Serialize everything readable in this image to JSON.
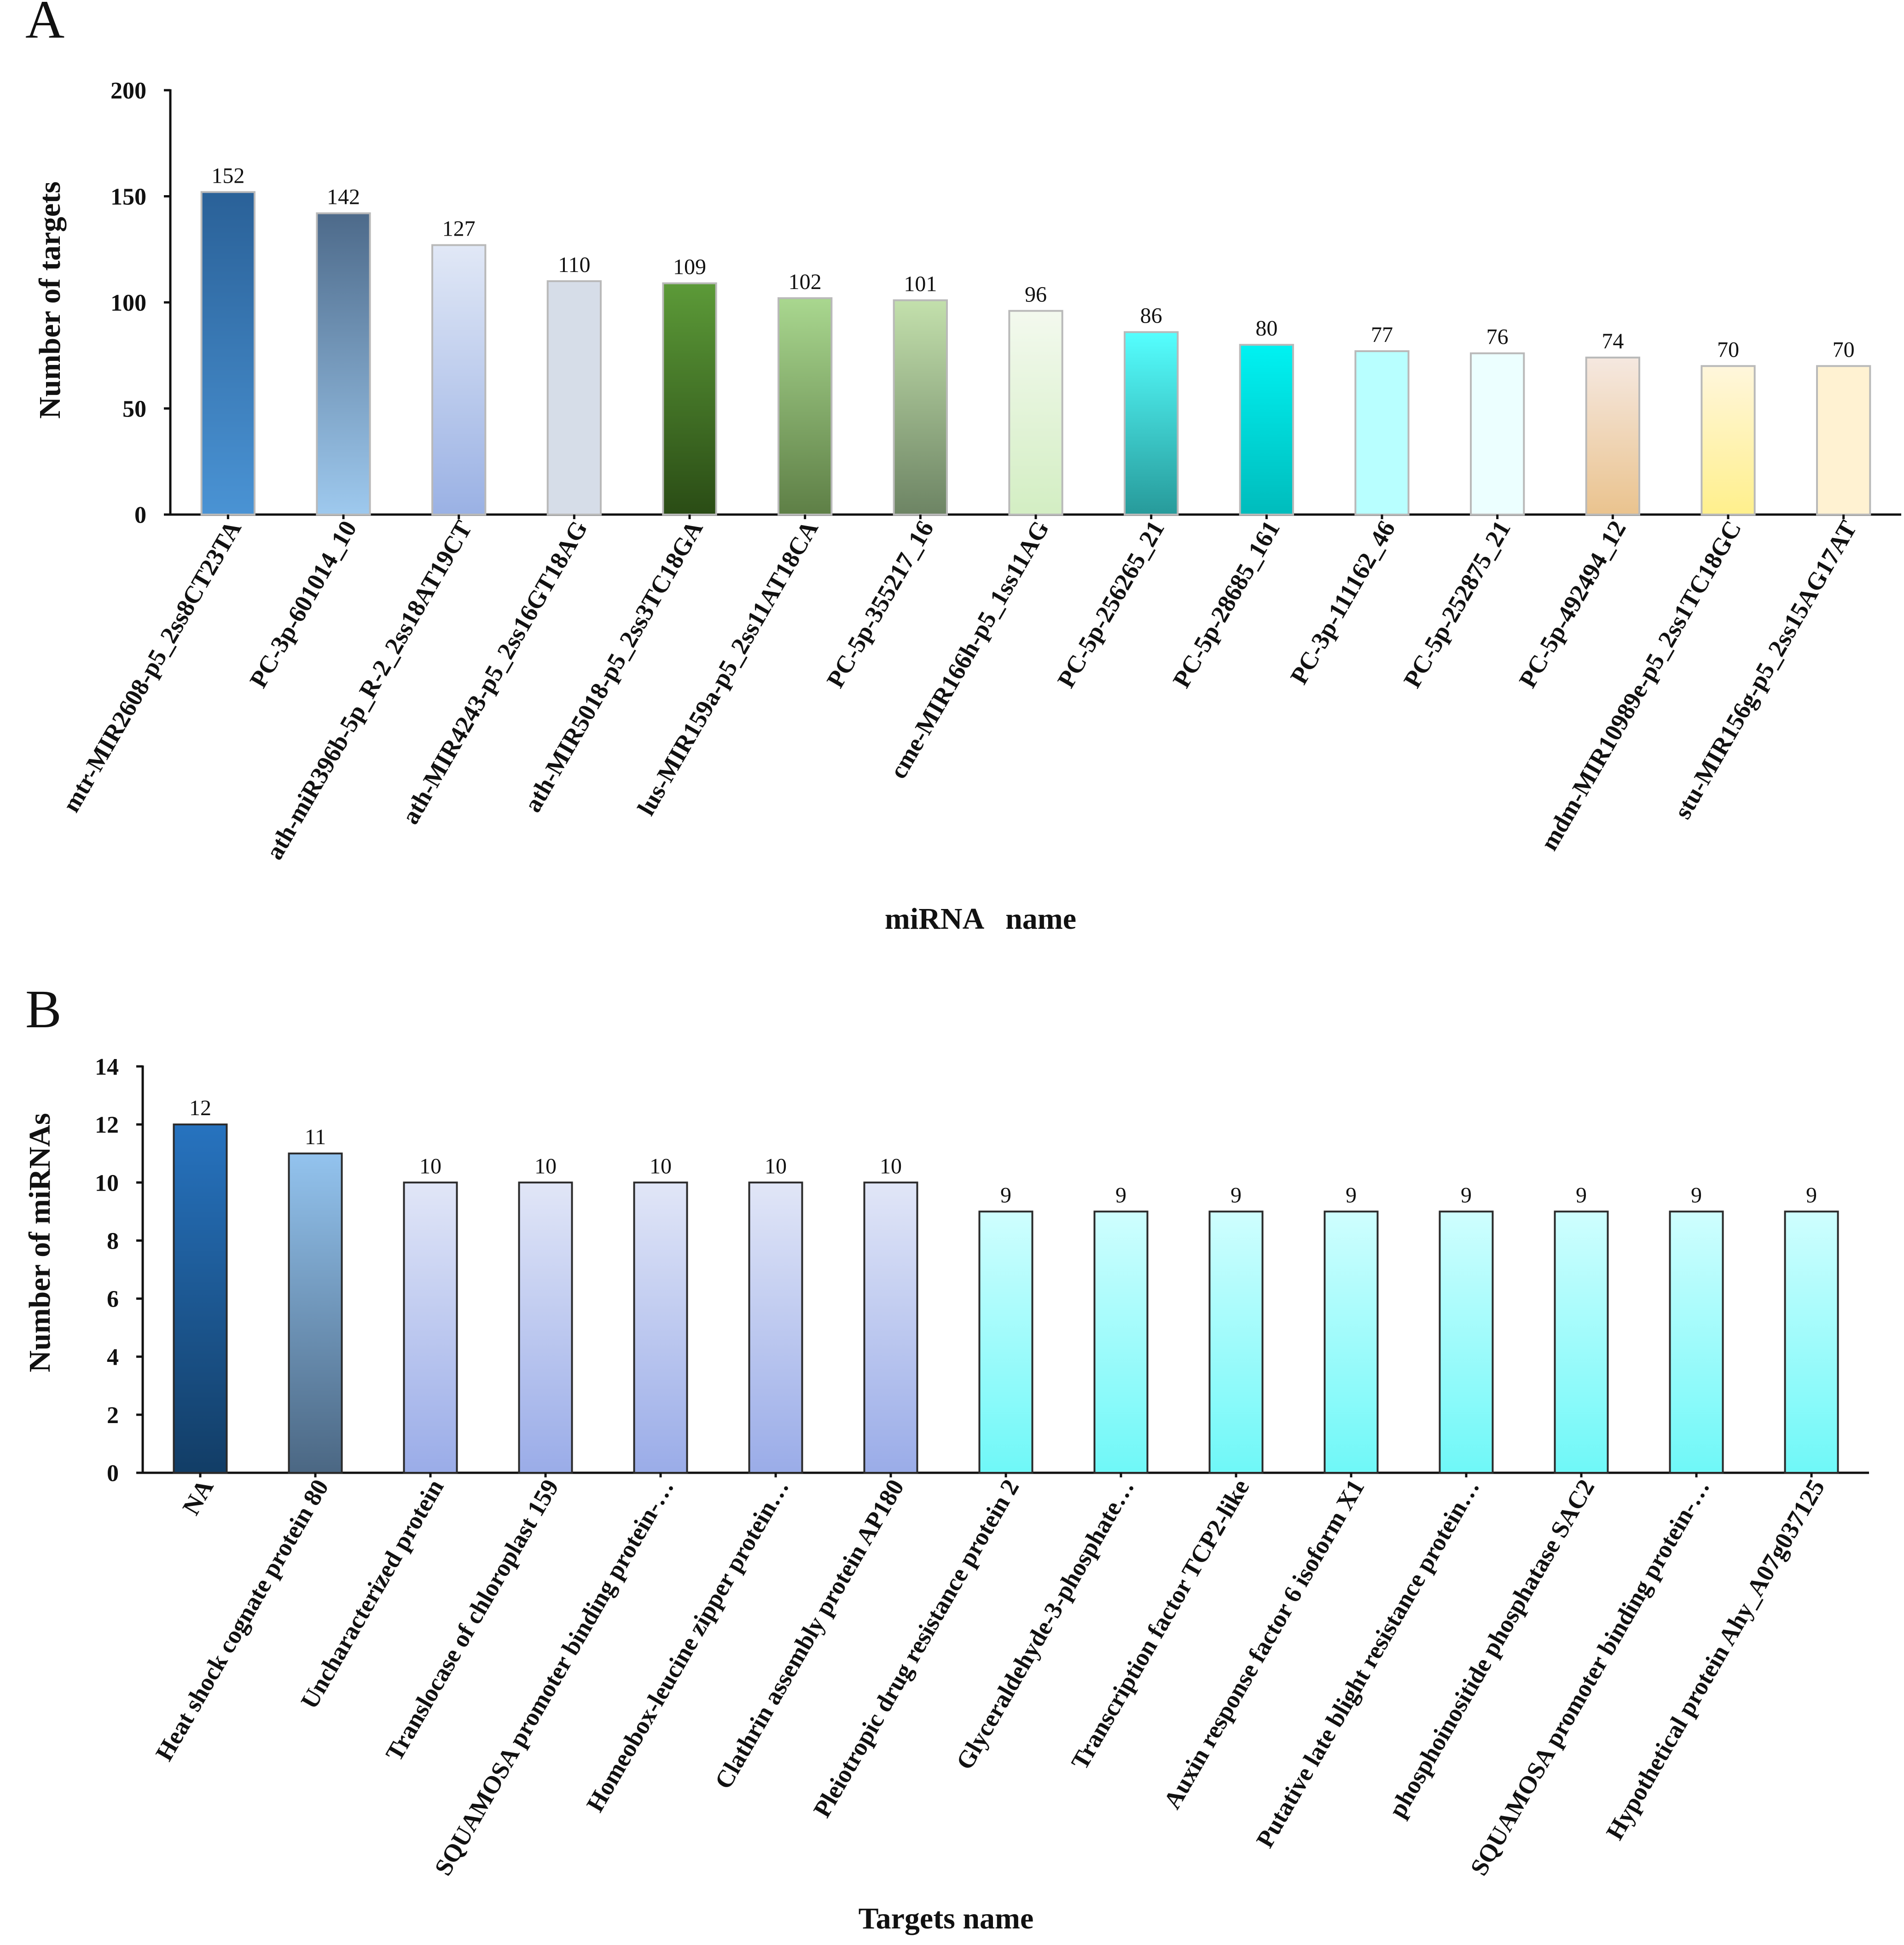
{
  "colors": {
    "axis": "#111111",
    "background": "#ffffff"
  },
  "chart_data": [
    {
      "type": "bar",
      "panel_label": "A",
      "xlabel": "miRNA   name",
      "ylabel": "Number of targets",
      "ylim": [
        0,
        200
      ],
      "yticks": [
        0,
        50,
        100,
        150,
        200
      ],
      "categories": [
        "mtr-MIR2608-p5_2ss8CT23TA",
        "PC-3p-601014_10",
        "ath-miR396b-5p_R-2_2ss18AT19CT",
        "ath-MIR4243-p5_2ss16GT18AG",
        "ath-MIR5018-p5_2ss3TC18GA",
        "lus-MIR159a-p5_2ss11AT18CA",
        "PC-5p-355217_16",
        "cme-MIR166h-p5_1ss11AG",
        "PC-5p-256265_21",
        "PC-5p-28685_161",
        "PC-3p-111162_46",
        "PC-5p-252875_21",
        "PC-5p-492494_12",
        "mdm-MIR10989e-p5_2ss1TC18GC",
        "stu-MIR156g-p5_2ss15AG17AT"
      ],
      "values": [
        152,
        142,
        127,
        110,
        109,
        102,
        101,
        96,
        86,
        80,
        77,
        76,
        74,
        70,
        70
      ],
      "bar_colors": [
        [
          "#2a6198",
          "#4a93d4"
        ],
        [
          "#4d6a8a",
          "#9ec9ee"
        ],
        [
          "#e1e8f6",
          "#9ab1e4"
        ],
        [
          "#d6dde8",
          "#d6dde8"
        ],
        [
          "#5c9a38",
          "#2a4c15"
        ],
        [
          "#a9d78f",
          "#5e7f46"
        ],
        [
          "#c3e0ac",
          "#6d8464"
        ],
        [
          "#f3f9ee",
          "#d3eec3"
        ],
        [
          "#55ffff",
          "#279a9a"
        ],
        [
          "#00f2f2",
          "#00bcbc"
        ],
        [
          "#b8ffff",
          "#b8ffff"
        ],
        [
          "#ecffff",
          "#ecffff"
        ],
        [
          "#f5e8e0",
          "#eac38e"
        ],
        [
          "#fff6dc",
          "#fff08c"
        ],
        [
          "#fff2d2",
          "#fff2d2"
        ]
      ]
    },
    {
      "type": "bar",
      "panel_label": "B",
      "xlabel": "Targets name",
      "ylabel": "Number of miRNAs",
      "ylim": [
        0,
        14
      ],
      "yticks": [
        0,
        2,
        4,
        6,
        8,
        10,
        12,
        14
      ],
      "categories": [
        "NA",
        "Heat shock cognate protein 80",
        "Uncharacterized protein",
        "Translocase of chloroplast 159",
        "SQUAMOSA promoter binding protein-…",
        "Homeobox-leucine zipper protein…",
        "Clathrin assembly protein AP180",
        "Pleiotropic drug resistance protein 2",
        "Glyceraldehyde-3-phosphate…",
        "Transcription factor TCP2-like",
        "Auxin response factor 6 isoform X1",
        "Putative late blight resistance protein…",
        "phosphoinositide phosphatase SAC2",
        "SQUAMOSA promoter binding protein-…",
        "Hypothetical protein Ahy_A07g037125"
      ],
      "values": [
        12,
        11,
        10,
        10,
        10,
        10,
        10,
        9,
        9,
        9,
        9,
        9,
        9,
        9,
        9
      ],
      "bar_colors": [
        [
          "#2773bf",
          "#123d66"
        ],
        [
          "#93c3ee",
          "#4b6783"
        ],
        [
          "#e1e6f7",
          "#9aace8"
        ],
        [
          "#e1e6f7",
          "#9aace8"
        ],
        [
          "#e1e6f7",
          "#9aace8"
        ],
        [
          "#e1e6f7",
          "#9aace8"
        ],
        [
          "#e1e6f7",
          "#9aace8"
        ],
        [
          "#cffefe",
          "#6ff8f8"
        ],
        [
          "#cffefe",
          "#6ff8f8"
        ],
        [
          "#cffefe",
          "#6ff8f8"
        ],
        [
          "#cffefe",
          "#6ff8f8"
        ],
        [
          "#cffefe",
          "#6ff8f8"
        ],
        [
          "#cffefe",
          "#6ff8f8"
        ],
        [
          "#cffefe",
          "#6ff8f8"
        ],
        [
          "#cffefe",
          "#6ff8f8"
        ]
      ]
    }
  ]
}
